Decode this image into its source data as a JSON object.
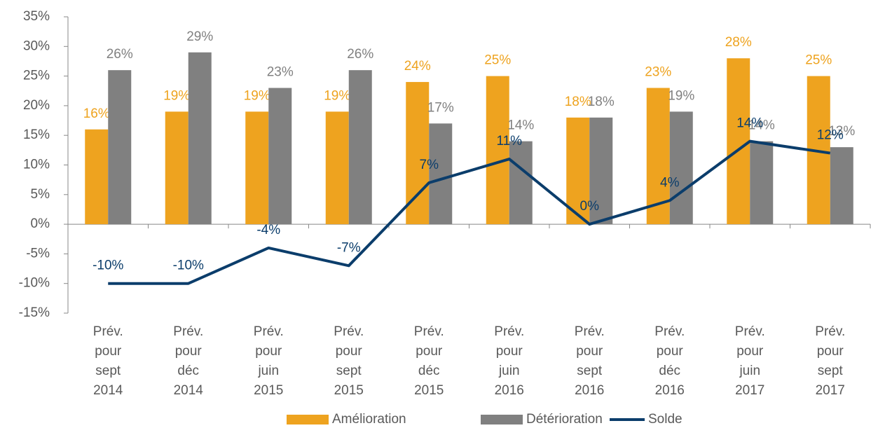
{
  "chart_data": {
    "type": "bar-line",
    "categories": [
      [
        "Prév.",
        "pour",
        "sept",
        "2014"
      ],
      [
        "Prév.",
        "pour",
        "déc",
        "2014"
      ],
      [
        "Prév.",
        "pour",
        "juin",
        "2015"
      ],
      [
        "Prév.",
        "pour",
        "sept",
        "2015"
      ],
      [
        "Prév.",
        "pour",
        "déc",
        "2015"
      ],
      [
        "Prév.",
        "pour",
        "juin",
        "2016"
      ],
      [
        "Prév.",
        "pour",
        "sept",
        "2016"
      ],
      [
        "Prév.",
        "pour",
        "déc",
        "2016"
      ],
      [
        "Prév.",
        "pour",
        "juin",
        "2017"
      ],
      [
        "Prév.",
        "pour",
        "sept",
        "2017"
      ]
    ],
    "series": [
      {
        "name": "Amélioration",
        "type": "bar",
        "color": "#eea31f",
        "values": [
          16,
          19,
          19,
          19,
          24,
          25,
          18,
          23,
          28,
          25
        ],
        "value_labels": [
          "16%",
          "19%",
          "19%",
          "19%",
          "24%",
          "25%",
          "18%",
          "23%",
          "28%",
          "25%"
        ]
      },
      {
        "name": "Détérioration",
        "type": "bar",
        "color": "#808080",
        "values": [
          26,
          29,
          23,
          26,
          17,
          14,
          18,
          19,
          14,
          13
        ],
        "value_labels": [
          "26%",
          "29%",
          "23%",
          "26%",
          "17%",
          "14%",
          "18%",
          "19%",
          "14%",
          "13%"
        ]
      },
      {
        "name": "Solde",
        "type": "line",
        "color": "#0b3d6b",
        "values": [
          -10,
          -10,
          -4,
          -7,
          7,
          11,
          0,
          4,
          14,
          12
        ],
        "value_labels": [
          "-10%",
          "-10%",
          "-4%",
          "-7%",
          "7%",
          "11%",
          "0%",
          "4%",
          "14%",
          "12%"
        ]
      }
    ],
    "ylim": [
      -15,
      35
    ],
    "yticks": [
      {
        "value": 35,
        "label": "35%"
      },
      {
        "value": 30,
        "label": "30%"
      },
      {
        "value": 25,
        "label": "25%"
      },
      {
        "value": 20,
        "label": "20%"
      },
      {
        "value": 15,
        "label": "15%"
      },
      {
        "value": 10,
        "label": "10%"
      },
      {
        "value": 5,
        "label": "5%"
      },
      {
        "value": 0,
        "label": "0%"
      },
      {
        "value": -5,
        "label": "-5%"
      },
      {
        "value": -10,
        "label": "-10%"
      },
      {
        "value": -15,
        "label": "-15%"
      }
    ],
    "grid": false,
    "legend": "bottom"
  }
}
